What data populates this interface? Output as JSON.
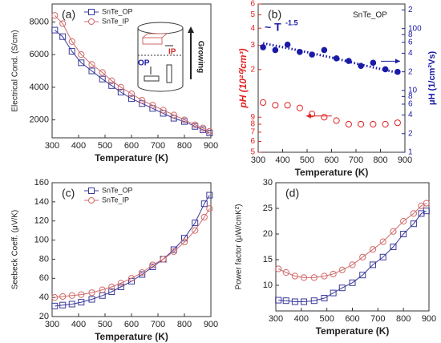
{
  "chart_data": [
    {
      "type": "line",
      "label": "(a)",
      "xlabel": "Temperature (K)",
      "ylabel": "Electrical Cond. (S/cm)",
      "x": [
        310,
        340,
        375,
        410,
        450,
        490,
        525,
        560,
        600,
        640,
        680,
        720,
        760,
        800,
        840,
        870,
        895
      ],
      "xlim": [
        300,
        900
      ],
      "xticks": [
        300,
        400,
        500,
        600,
        700,
        800,
        900
      ],
      "ylim": [
        900,
        9100
      ],
      "yticks": [
        2000,
        4000,
        6000,
        8000
      ],
      "legend": "upper left",
      "inset_labels": [
        "IP",
        "OP",
        "Growing"
      ],
      "series": [
        {
          "name": "SnTe_OP",
          "color": "#3a3a9a",
          "marker": "square",
          "values": [
            7500,
            7100,
            6200,
            5500,
            5000,
            4500,
            4100,
            3700,
            3300,
            3000,
            2700,
            2400,
            2100,
            1900,
            1600,
            1400,
            1200
          ]
        },
        {
          "name": "SnTe_IP",
          "color": "#d06a6a",
          "marker": "circle",
          "values": [
            8400,
            7900,
            6800,
            6000,
            5400,
            4900,
            4400,
            4000,
            3600,
            3200,
            2900,
            2600,
            2300,
            2000,
            1700,
            1500,
            1300
          ]
        }
      ]
    },
    {
      "type": "scatter",
      "label": "(b)",
      "xlabel": "Temperature (K)",
      "ylabel": "pH (10²⁰/cm³)",
      "y2label": "μH (1/cm²Vs)",
      "annotation": "SnTe_OP",
      "x": [
        320,
        370,
        420,
        470,
        520,
        570,
        620,
        670,
        720,
        770,
        820,
        870
      ],
      "xlim": [
        300,
        900
      ],
      "xticks": [
        300,
        400,
        500,
        600,
        700,
        800,
        900
      ],
      "log_y": true,
      "ylim": [
        0.5,
        6
      ],
      "ycolor": "#e02020",
      "yticks": [
        6,
        5,
        4,
        3,
        2,
        {
          "value": 0.9,
          "label": "9"
        },
        {
          "value": 0.8,
          "label": "8"
        },
        {
          "value": 0.7,
          "label": "7"
        },
        {
          "value": 0.6,
          "label": "6"
        },
        {
          "value": 0.5,
          "label": "5"
        }
      ],
      "log_y2": true,
      "y2lim": [
        1,
        250
      ],
      "y2color": "#1a1aa8",
      "y2ticks": [
        {
          "value": 200,
          "label": "2"
        },
        100,
        {
          "value": 80,
          "label": "8"
        },
        {
          "value": 60,
          "label": "6"
        },
        {
          "value": 40,
          "label": "4"
        },
        {
          "value": 20,
          "label": "2"
        },
        10,
        8,
        6,
        4,
        2,
        1
      ],
      "series": [
        {
          "color": "#e02020",
          "marker": "circle",
          "values": [
            1.15,
            1.1,
            1.1,
            1.05,
            0.95,
            0.9,
            0.85,
            0.8,
            0.8,
            0.8,
            0.8,
            0.82
          ]
        },
        {
          "color": "#1a1aa8",
          "marker": "filled-circle",
          "axis": "y2",
          "values": [
            50,
            45,
            55,
            42,
            38,
            45,
            33,
            30,
            25,
            28,
            22,
            20
          ]
        },
        {
          "name": "~ T",
          "exponent": "-1.5",
          "color": "#1a1aa8",
          "style": "dotted",
          "axis": "y2",
          "x": [
            320,
            460,
            600,
            740,
            880
          ],
          "values": [
            58,
            45,
            34,
            25,
            19
          ]
        }
      ]
    },
    {
      "type": "line",
      "label": "(c)",
      "xlabel": "Temperature (K)",
      "ylabel": "Seebeck Coeff. (μV/K)",
      "x": [
        310,
        340,
        375,
        410,
        450,
        490,
        525,
        560,
        600,
        640,
        680,
        720,
        760,
        800,
        840,
        875,
        895
      ],
      "xlim": [
        300,
        900
      ],
      "xticks": [
        300,
        400,
        500,
        600,
        700,
        800,
        900
      ],
      "ylim": [
        20,
        160
      ],
      "yticks": [
        20,
        40,
        60,
        80,
        100,
        120,
        140,
        160
      ],
      "legend": "upper left",
      "series": [
        {
          "name": "SnTe_OP",
          "color": "#3a3a9a",
          "marker": "square",
          "values": [
            31,
            32,
            33,
            35,
            38,
            42,
            46,
            51,
            57,
            64,
            72,
            80,
            90,
            102,
            118,
            138,
            147
          ]
        },
        {
          "name": "SnTe_IP",
          "color": "#d06a6a",
          "marker": "circle",
          "values": [
            40,
            41,
            42,
            43,
            45,
            48,
            51,
            55,
            60,
            66,
            74,
            80,
            88,
            98,
            110,
            124,
            133
          ]
        }
      ]
    },
    {
      "type": "line",
      "label": "(d)",
      "xlabel": "Temperature (K)",
      "ylabel": "Power factor (μW/cmK²)",
      "x": [
        310,
        340,
        375,
        410,
        450,
        490,
        525,
        560,
        600,
        640,
        680,
        720,
        760,
        800,
        840,
        870,
        890
      ],
      "xlim": [
        300,
        900
      ],
      "xticks": [
        300,
        400,
        500,
        600,
        700,
        800,
        900
      ],
      "ylim": [
        5,
        30
      ],
      "yticks": [
        10,
        15,
        20,
        25,
        30
      ],
      "series": [
        {
          "color": "#3a3a9a",
          "marker": "square",
          "values": [
            7.1,
            7.0,
            6.8,
            6.8,
            7.0,
            7.5,
            8.5,
            9.5,
            10.5,
            12,
            14,
            15.5,
            17.5,
            20,
            22,
            24,
            24.5
          ]
        },
        {
          "color": "#d06a6a",
          "marker": "circle",
          "values": [
            13.2,
            12.5,
            11.8,
            11.5,
            11.5,
            11.8,
            12.2,
            13,
            14,
            15.5,
            17,
            18.5,
            20.5,
            22.5,
            24,
            25.5,
            26
          ]
        }
      ]
    }
  ]
}
